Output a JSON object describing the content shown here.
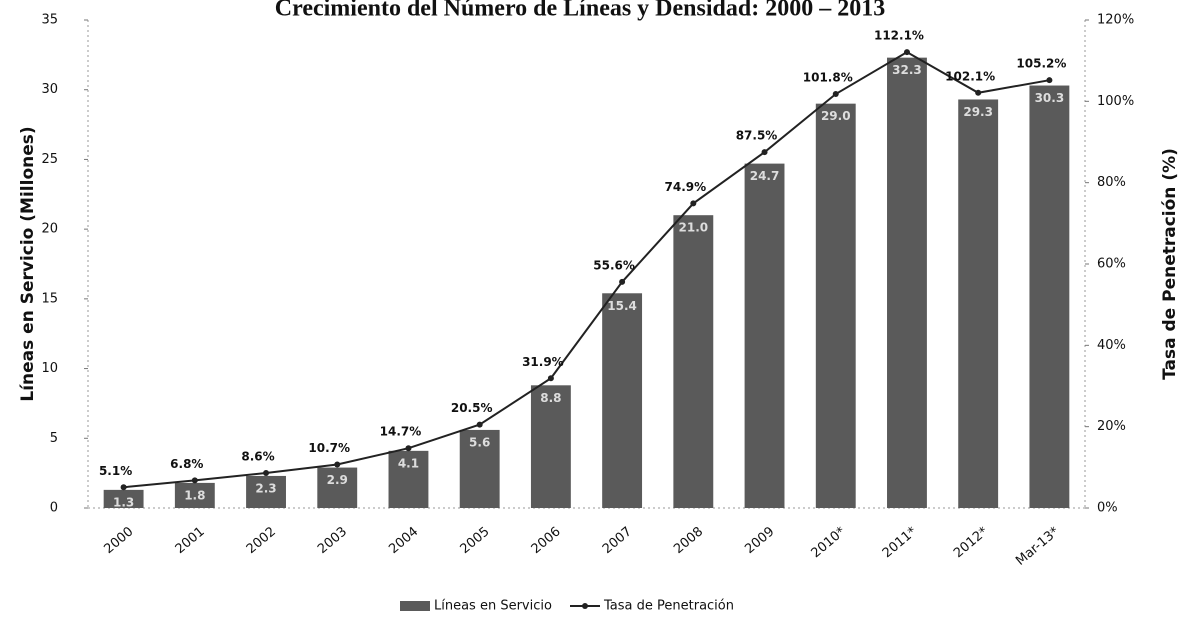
{
  "chart_data": {
    "type": "bar_line",
    "title": "Crecimiento del Número de Líneas y Densidad: 2000 – 2013",
    "y_label": "Líneas en Servicio (Millones)",
    "y2_label": "Tasa de Penetración (%)",
    "categories": [
      "2000",
      "2001",
      "2002",
      "2003",
      "2004",
      "2005",
      "2006",
      "2007",
      "2008",
      "2009",
      "2010*",
      "2011*",
      "2012*",
      "Mar-13*"
    ],
    "series": [
      {
        "name": "Líneas en Servicio",
        "color": "#5a5a5a",
        "type": "bar",
        "values": [
          1.3,
          1.8,
          2.3,
          2.9,
          4.1,
          5.6,
          8.8,
          15.4,
          21.0,
          24.7,
          29.0,
          32.3,
          29.3,
          30.3
        ],
        "value_labels": [
          "1.3",
          "1.8",
          "2.3",
          "2.9",
          "4.1",
          "5.6",
          "8.8",
          "15.4",
          "21.0",
          "24.7",
          "29.0",
          "32.3",
          "29.3",
          "30.3"
        ]
      },
      {
        "name": "Tasa de Penetración",
        "color": "#222222",
        "type": "line",
        "axis": "y2",
        "values": [
          5.1,
          6.8,
          8.6,
          10.7,
          14.7,
          20.5,
          31.9,
          55.6,
          74.9,
          87.5,
          101.8,
          112.1,
          102.1,
          105.2
        ],
        "value_labels": [
          "5.1%",
          "6.8%",
          "8.6%",
          "10.7%",
          "14.7%",
          "20.5%",
          "31.9%",
          "55.6%",
          "74.9%",
          "87.5%",
          "101.8%",
          "112.1%",
          "102.1%",
          "105.2%"
        ]
      }
    ],
    "ylim": [
      0,
      35
    ],
    "yticks": [
      0,
      5,
      10,
      15,
      20,
      25,
      30,
      35
    ],
    "y2lim": [
      0,
      120
    ],
    "y2ticks": [
      {
        "value": 0,
        "label": "0%"
      },
      {
        "value": 20,
        "label": "20%"
      },
      {
        "value": 40,
        "label": "40%"
      },
      {
        "value": 60,
        "label": "60%"
      },
      {
        "value": 80,
        "label": "80%"
      },
      {
        "value": 100,
        "label": "100%"
      },
      {
        "value": 120,
        "label": "120%"
      }
    ],
    "legend": "bottom"
  }
}
